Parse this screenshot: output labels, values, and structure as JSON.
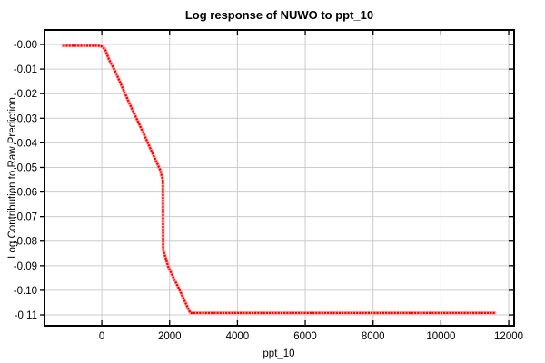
{
  "chart_data": {
    "type": "line",
    "title": "Log response of NUWO to ppt_10",
    "xlabel": "ppt_10",
    "ylabel": "Log Contribution to Raw Prediction",
    "legend": "none",
    "grid": true,
    "marker": "dense-square-dots",
    "xlim": [
      -1690,
      12160
    ],
    "ylim": [
      -0.11442,
      0.00591
    ],
    "xticks": {
      "values": [
        0,
        2000,
        4000,
        6000,
        8000,
        10000,
        12000
      ],
      "labels": [
        "0",
        "2000",
        "4000",
        "6000",
        "8000",
        "10000",
        "12000"
      ]
    },
    "yticks": {
      "values": [
        0,
        -0.01,
        -0.02,
        -0.03,
        -0.04,
        -0.05,
        -0.06,
        -0.07,
        -0.08,
        -0.09,
        -0.1,
        -0.11
      ],
      "labels": [
        "-0.00",
        "-0.01",
        "-0.02",
        "-0.03",
        "-0.04",
        "-0.05",
        "-0.06",
        "-0.07",
        "-0.08",
        "-0.09",
        "-0.10",
        "-0.11"
      ]
    },
    "series": [
      {
        "name": "NUWO log response to ppt_10",
        "points": [
          [
            -1150,
            -0.0005
          ],
          [
            -800,
            -0.0005
          ],
          [
            -400,
            -0.0005
          ],
          [
            -100,
            -0.0005
          ],
          [
            0,
            -0.0008
          ],
          [
            100,
            -0.002
          ],
          [
            210,
            -0.006
          ],
          [
            400,
            -0.011
          ],
          [
            570,
            -0.0164
          ],
          [
            800,
            -0.0235
          ],
          [
            1020,
            -0.03
          ],
          [
            1250,
            -0.0367
          ],
          [
            1470,
            -0.0435
          ],
          [
            1620,
            -0.048
          ],
          [
            1720,
            -0.051
          ],
          [
            1780,
            -0.054
          ],
          [
            1800,
            -0.0555
          ],
          [
            1808,
            -0.0835
          ],
          [
            1900,
            -0.0875
          ],
          [
            1960,
            -0.0903
          ],
          [
            2100,
            -0.0945
          ],
          [
            2300,
            -0.1
          ],
          [
            2450,
            -0.1045
          ],
          [
            2610,
            -0.1092
          ],
          [
            3000,
            -0.1092
          ],
          [
            4000,
            -0.1092
          ],
          [
            5000,
            -0.1092
          ],
          [
            6000,
            -0.1092
          ],
          [
            7000,
            -0.1092
          ],
          [
            8000,
            -0.1092
          ],
          [
            9000,
            -0.1092
          ],
          [
            10000,
            -0.1092
          ],
          [
            11000,
            -0.1092
          ],
          [
            11590,
            -0.1092
          ]
        ]
      }
    ],
    "colors": {
      "line": "#ff0000",
      "line_halo": "#ffb4b4",
      "grid": "#cccccc",
      "border": "#000000",
      "text": "#000000",
      "background": "#ffffff"
    }
  }
}
